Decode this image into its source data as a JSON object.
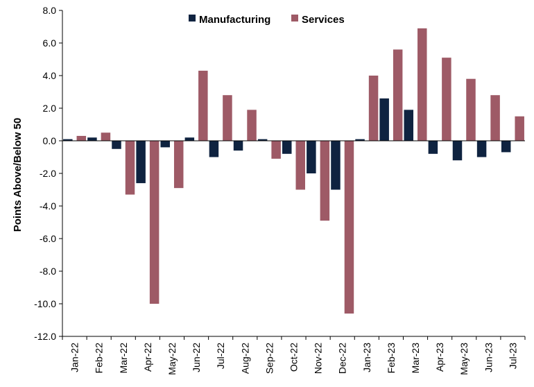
{
  "chart_data": {
    "type": "bar",
    "title": "",
    "xlabel": "",
    "ylabel": "Points Above/Below 50",
    "ylim": [
      -12.0,
      8.0
    ],
    "y_ticks": [
      "8.0",
      "6.0",
      "4.0",
      "2.0",
      "0.0",
      "-2.0",
      "-4.0",
      "-6.0",
      "-8.0",
      "-10.0",
      "-12.0"
    ],
    "grid": false,
    "legend_position": "top-center",
    "categories": [
      "Jan-22",
      "Feb-22",
      "Mar-22",
      "Apr-22",
      "May-22",
      "Jun-22",
      "Jul-22",
      "Aug-22",
      "Sep-22",
      "Oct-22",
      "Nov-22",
      "Dec-22",
      "Jan-23",
      "Feb-23",
      "Mar-23",
      "Apr-23",
      "May-23",
      "Jun-23",
      "Jul-23"
    ],
    "series": [
      {
        "name": "Manufacturing",
        "color": "#0f2340",
        "values": [
          0.1,
          0.2,
          -0.5,
          -2.6,
          -0.4,
          0.2,
          -1.0,
          -0.6,
          0.1,
          -0.8,
          -2.0,
          -3.0,
          0.1,
          2.6,
          1.9,
          -0.8,
          -1.2,
          -1.0,
          -0.7
        ]
      },
      {
        "name": "Services",
        "color": "#9e5a66",
        "values": [
          0.3,
          0.5,
          -3.3,
          -10.0,
          -2.9,
          4.3,
          2.8,
          1.9,
          -1.1,
          -3.0,
          -4.9,
          -10.6,
          4.0,
          5.6,
          6.9,
          5.1,
          3.8,
          2.8,
          1.5
        ]
      }
    ]
  }
}
